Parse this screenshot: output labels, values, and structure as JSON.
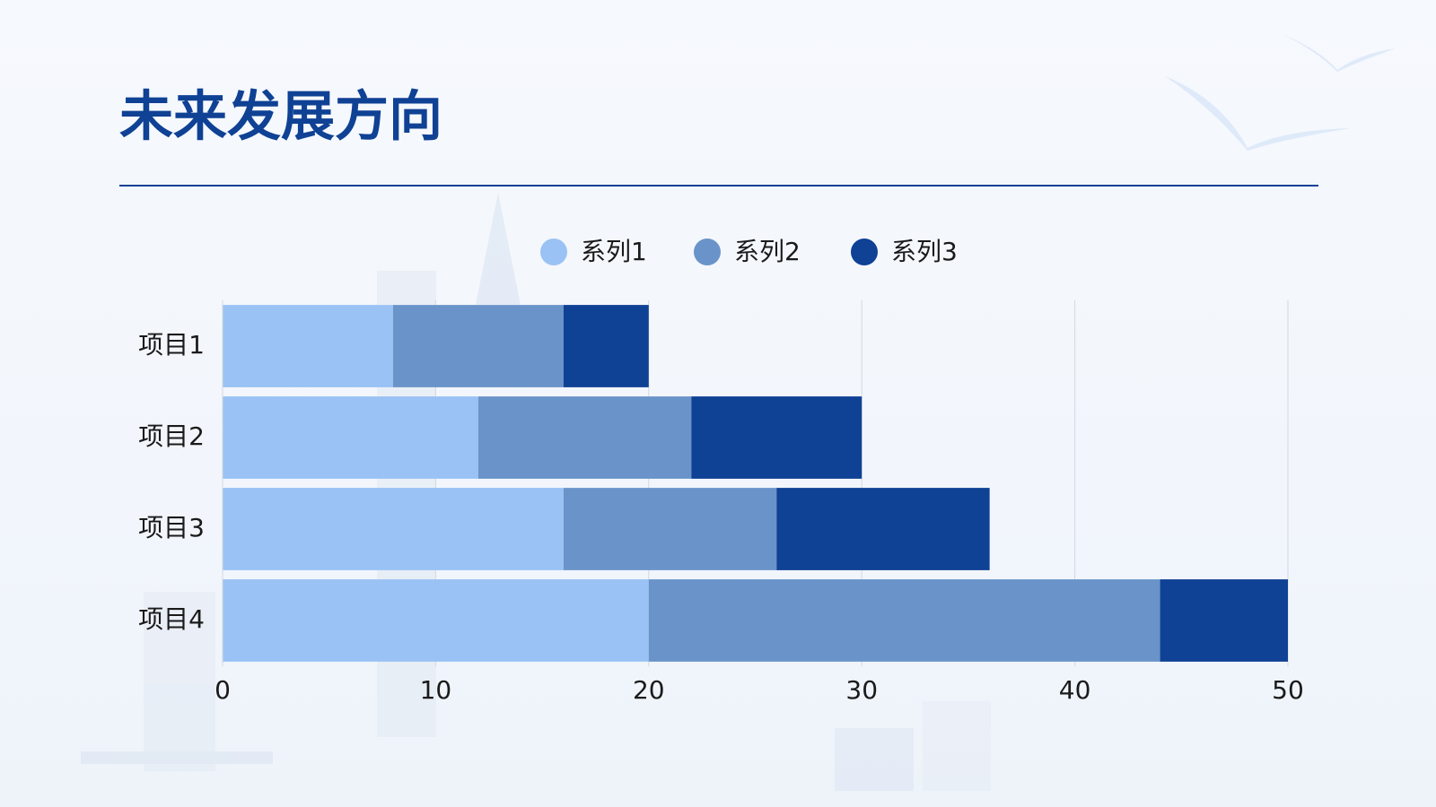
{
  "chart_data": {
    "type": "bar",
    "orientation": "horizontal",
    "stacked": true,
    "title": "未来发展方向",
    "categories": [
      "项目1",
      "项目2",
      "项目3",
      "项目4"
    ],
    "series": [
      {
        "name": "系列1",
        "color": "#9ac2f4",
        "values": [
          8,
          12,
          16,
          20
        ]
      },
      {
        "name": "系列2",
        "color": "#6a94c9",
        "values": [
          8,
          10,
          10,
          24
        ]
      },
      {
        "name": "系列3",
        "color": "#0f4194",
        "values": [
          4,
          8,
          10,
          6
        ]
      }
    ],
    "xlim": [
      0,
      50
    ],
    "xticks": [
      0,
      10,
      20,
      30,
      40,
      50
    ],
    "grid": true,
    "legend": "top"
  }
}
